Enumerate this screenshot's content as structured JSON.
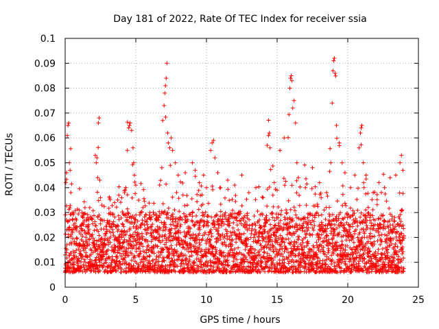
{
  "chart_data": {
    "type": "scatter",
    "title": "Day 181 of 2022, Rate Of TEC Index for receiver ssia",
    "xlabel": "GPS time / hours",
    "ylabel": "ROTI / TECUs",
    "xlim": [
      0,
      25
    ],
    "ylim": [
      0,
      0.1
    ],
    "xticks": [
      0,
      5,
      10,
      15,
      20,
      25
    ],
    "xtick_labels": [
      "0",
      "5",
      "10",
      "15",
      "20",
      "25"
    ],
    "yticks": [
      0,
      0.01,
      0.02,
      0.03,
      0.04,
      0.05,
      0.06,
      0.07,
      0.08,
      0.09,
      0.1
    ],
    "ytick_labels": [
      "0",
      "0.01",
      "0.02",
      "0.03",
      "0.04",
      "0.05",
      "0.06",
      "0.07",
      "0.08",
      "0.09",
      "0.1"
    ],
    "grid": true,
    "marker": "+",
    "color": "#ff0000",
    "series": [
      {
        "name": "ROTI",
        "points": [
          [
            0.05,
            0.042
          ],
          [
            0.1,
            0.046
          ],
          [
            0.15,
            0.061
          ],
          [
            0.2,
            0.065
          ],
          [
            0.25,
            0.066
          ],
          [
            0.3,
            0.05
          ],
          [
            0.35,
            0.047
          ],
          [
            0.4,
            0.038
          ],
          [
            0.5,
            0.03
          ],
          [
            0.6,
            0.025
          ],
          [
            0.8,
            0.027
          ],
          [
            1.0,
            0.031
          ],
          [
            1.2,
            0.03
          ],
          [
            1.4,
            0.032
          ],
          [
            1.6,
            0.028
          ],
          [
            2.2,
            0.05
          ],
          [
            2.25,
            0.052
          ],
          [
            2.3,
            0.044
          ],
          [
            2.35,
            0.066
          ],
          [
            2.4,
            0.068
          ],
          [
            2.45,
            0.043
          ],
          [
            2.5,
            0.036
          ],
          [
            2.6,
            0.033
          ],
          [
            3.2,
            0.03
          ],
          [
            3.5,
            0.034
          ],
          [
            3.8,
            0.037
          ],
          [
            4.0,
            0.036
          ],
          [
            4.2,
            0.038
          ],
          [
            4.3,
            0.04
          ],
          [
            4.4,
            0.055
          ],
          [
            4.5,
            0.064
          ],
          [
            4.55,
            0.065
          ],
          [
            4.6,
            0.066
          ],
          [
            4.7,
            0.063
          ],
          [
            4.8,
            0.056
          ],
          [
            4.85,
            0.05
          ],
          [
            4.9,
            0.045
          ],
          [
            5.0,
            0.041
          ],
          [
            5.2,
            0.035
          ],
          [
            5.5,
            0.032
          ],
          [
            6.0,
            0.03
          ],
          [
            6.5,
            0.027
          ],
          [
            6.9,
            0.067
          ],
          [
            7.0,
            0.073
          ],
          [
            7.05,
            0.078
          ],
          [
            7.1,
            0.081
          ],
          [
            7.15,
            0.084
          ],
          [
            7.2,
            0.09
          ],
          [
            7.25,
            0.062
          ],
          [
            7.3,
            0.058
          ],
          [
            7.4,
            0.056
          ],
          [
            7.5,
            0.06
          ],
          [
            7.6,
            0.055
          ],
          [
            7.8,
            0.05
          ],
          [
            8.0,
            0.045
          ],
          [
            8.5,
            0.046
          ],
          [
            9.0,
            0.05
          ],
          [
            9.2,
            0.047
          ],
          [
            9.5,
            0.042
          ],
          [
            9.8,
            0.045
          ],
          [
            10.0,
            0.04
          ],
          [
            10.3,
            0.055
          ],
          [
            10.4,
            0.058
          ],
          [
            10.5,
            0.059
          ],
          [
            10.6,
            0.052
          ],
          [
            10.8,
            0.046
          ],
          [
            11.0,
            0.04
          ],
          [
            11.5,
            0.043
          ],
          [
            12.0,
            0.041
          ],
          [
            12.5,
            0.045
          ],
          [
            13.0,
            0.038
          ],
          [
            13.5,
            0.04
          ],
          [
            14.0,
            0.036
          ],
          [
            14.3,
            0.057
          ],
          [
            14.4,
            0.061
          ],
          [
            14.45,
            0.062
          ],
          [
            14.5,
            0.056
          ],
          [
            14.8,
            0.042
          ],
          [
            15.0,
            0.039
          ],
          [
            15.2,
            0.055
          ],
          [
            15.5,
            0.06
          ],
          [
            15.9,
            0.08
          ],
          [
            15.95,
            0.084
          ],
          [
            16.0,
            0.085
          ],
          [
            16.05,
            0.083
          ],
          [
            16.1,
            0.072
          ],
          [
            16.2,
            0.075
          ],
          [
            16.3,
            0.066
          ],
          [
            16.4,
            0.05
          ],
          [
            16.5,
            0.044
          ],
          [
            17.0,
            0.04
          ],
          [
            17.5,
            0.048
          ],
          [
            18.0,
            0.042
          ],
          [
            18.5,
            0.038
          ],
          [
            18.8,
            0.05
          ],
          [
            18.9,
            0.074
          ],
          [
            18.95,
            0.087
          ],
          [
            19.0,
            0.091
          ],
          [
            19.05,
            0.092
          ],
          [
            19.1,
            0.086
          ],
          [
            19.2,
            0.065
          ],
          [
            19.4,
            0.058
          ],
          [
            19.6,
            0.05
          ],
          [
            19.8,
            0.046
          ],
          [
            20.2,
            0.04
          ],
          [
            20.5,
            0.045
          ],
          [
            20.8,
            0.056
          ],
          [
            20.9,
            0.062
          ],
          [
            20.95,
            0.064
          ],
          [
            21.0,
            0.065
          ],
          [
            21.1,
            0.05
          ],
          [
            21.3,
            0.045
          ],
          [
            21.8,
            0.038
          ],
          [
            22.2,
            0.042
          ],
          [
            22.6,
            0.04
          ],
          [
            23.0,
            0.044
          ],
          [
            23.4,
            0.045
          ],
          [
            23.7,
            0.05
          ],
          [
            23.8,
            0.053
          ],
          [
            23.9,
            0.047
          ]
        ],
        "baseline": {
          "x_step_hours": 0.03,
          "typical_min": 0.006,
          "typical_max": 0.03,
          "median": 0.014
        }
      }
    ]
  }
}
